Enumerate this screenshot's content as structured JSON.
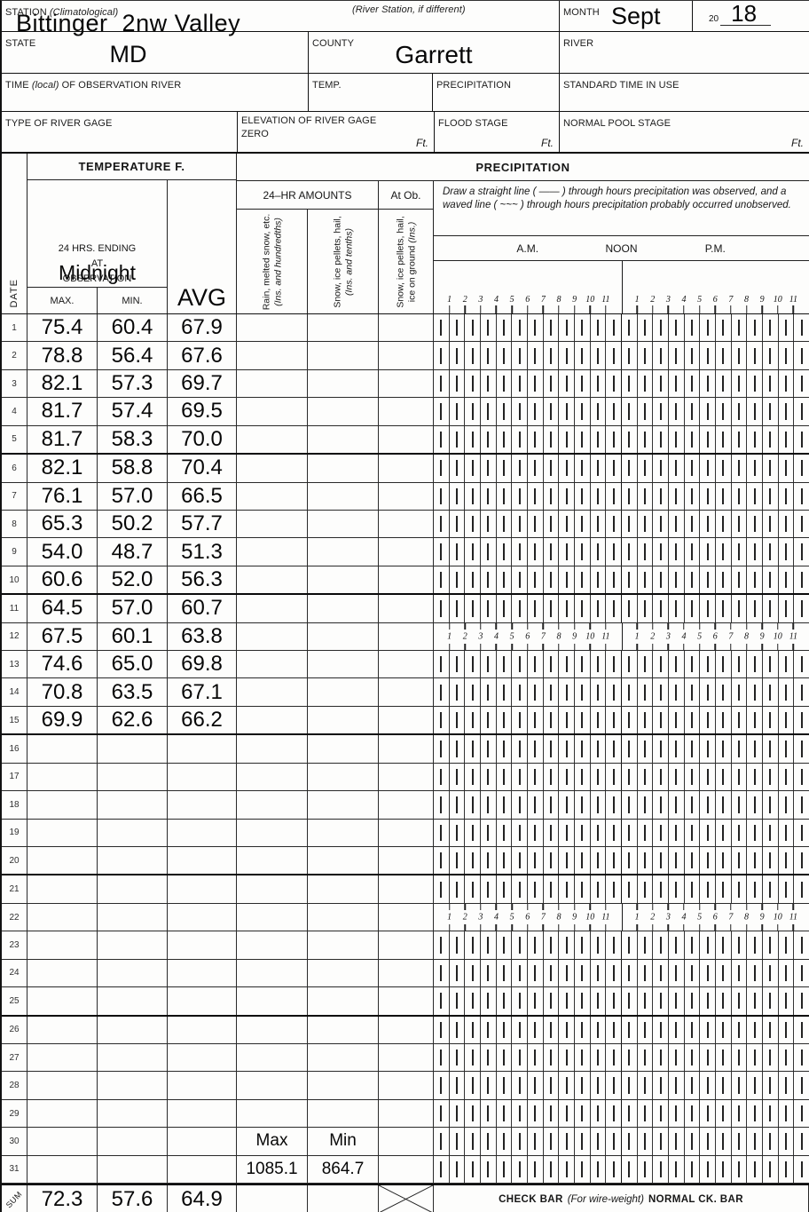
{
  "form": {
    "station_label": "STATION",
    "station_sublabel": "(Climatological)",
    "river_station_label": "(River Station, if different)",
    "station_value": "Bittinger  2nw Valley",
    "month_label": "MONTH",
    "month_value": "Sept",
    "year_prefix": "20",
    "year_value": "18",
    "state_label": "STATE",
    "state_value": "MD",
    "county_label": "COUNTY",
    "county_value": "Garrett",
    "river_label": "RIVER",
    "time_label_1": "TIME",
    "time_label_2": "(local)",
    "time_label_3": "OF OBSERVATION RIVER",
    "temp_label": "TEMP.",
    "precip_label": "PRECIPITATION",
    "std_time_label": "STANDARD TIME IN USE",
    "gage_label": "TYPE OF RIVER GAGE",
    "elevation_label": "ELEVATION OF RIVER GAGE ZERO",
    "flood_label": "FLOOD STAGE",
    "pool_label": "NORMAL POOL STAGE",
    "ft_label": "Ft."
  },
  "table": {
    "date_header": "DATE",
    "temperature_header": "TEMPERATURE  F.",
    "precipitation_header": "PRECIPITATION",
    "ending_label": "24 HRS. ENDING\nAT\nOBSERVATION",
    "ending_value": "Midnight",
    "max_label": "MAX.",
    "min_label": "MIN.",
    "avg_label": "AVG",
    "amounts_label": "24–HR AMOUNTS",
    "at_ob_label": "At Ob.",
    "rain_col": {
      "main": "Rain, melted snow, etc.",
      "unit": "(Ins. and hundredths)"
    },
    "snow_col": {
      "main": "Snow, ice pellets, hail,",
      "unit": "(Ins. and tenths)"
    },
    "ground_col": {
      "main": "Snow, ice pellets, hail, ice on ground",
      "unit": "(Ins.)"
    },
    "instruction": "Draw a straight line ( —— ) through hours precipitation was observed, and a waved line ( ~~~ ) through hours precipitation probably occurred unobserved.",
    "am_label": "A.M.",
    "noon_label": "NOON",
    "pm_label": "P.M.",
    "hour_numbers": [
      "1",
      "2",
      "3",
      "4",
      "5",
      "6",
      "7",
      "8",
      "9",
      "10",
      "11"
    ],
    "rows": [
      {
        "day": "1",
        "max": "75.4",
        "min": "60.4",
        "avg": "67.9"
      },
      {
        "day": "2",
        "max": "78.8",
        "min": "56.4",
        "avg": "67.6"
      },
      {
        "day": "3",
        "max": "82.1",
        "min": "57.3",
        "avg": "69.7"
      },
      {
        "day": "4",
        "max": "81.7",
        "min": "57.4",
        "avg": "69.5"
      },
      {
        "day": "5",
        "max": "81.7",
        "min": "58.3",
        "avg": "70.0"
      },
      {
        "day": "6",
        "max": "82.1",
        "min": "58.8",
        "avg": "70.4"
      },
      {
        "day": "7",
        "max": "76.1",
        "min": "57.0",
        "avg": "66.5"
      },
      {
        "day": "8",
        "max": "65.3",
        "min": "50.2",
        "avg": "57.7"
      },
      {
        "day": "9",
        "max": "54.0",
        "min": "48.7",
        "avg": "51.3"
      },
      {
        "day": "10",
        "max": "60.6",
        "min": "52.0",
        "avg": "56.3"
      },
      {
        "day": "11",
        "max": "64.5",
        "min": "57.0",
        "avg": "60.7"
      },
      {
        "day": "12",
        "max": "67.5",
        "min": "60.1",
        "avg": "63.8",
        "hour_numbers_strip": true
      },
      {
        "day": "13",
        "max": "74.6",
        "min": "65.0",
        "avg": "69.8"
      },
      {
        "day": "14",
        "max": "70.8",
        "min": "63.5",
        "avg": "67.1"
      },
      {
        "day": "15",
        "max": "69.9",
        "min": "62.6",
        "avg": "66.2"
      },
      {
        "day": "16"
      },
      {
        "day": "17"
      },
      {
        "day": "18"
      },
      {
        "day": "19"
      },
      {
        "day": "20"
      },
      {
        "day": "21"
      },
      {
        "day": "22",
        "hour_numbers_strip": true
      },
      {
        "day": "23"
      },
      {
        "day": "24"
      },
      {
        "day": "25"
      },
      {
        "day": "26"
      },
      {
        "day": "27"
      },
      {
        "day": "28"
      },
      {
        "day": "29"
      },
      {
        "day": "30",
        "rain": "Max",
        "snow": "Min"
      },
      {
        "day": "31",
        "rain": "1085.1",
        "snow": "864.7"
      }
    ],
    "heavy_border_after_days": [
      5,
      10,
      15,
      20,
      25
    ],
    "sum_label": "SUM",
    "sum": {
      "max": "72.3",
      "min": "57.6",
      "avg": "64.9"
    },
    "check_bar": {
      "bold1": "CHECK BAR",
      "italic": "(For wire-weight)",
      "bold2": "NORMAL CK. BAR"
    }
  }
}
